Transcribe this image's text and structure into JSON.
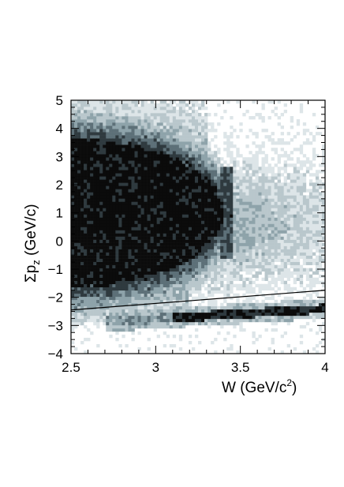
{
  "chart_data": {
    "type": "heatmap",
    "title": "",
    "xlabel": "W (GeV/c²)",
    "ylabel": "Σp_z (GeV/c)",
    "xlabel_parts": {
      "main": "W (GeV/c",
      "sup": "2",
      "end": ")"
    },
    "ylabel_parts": {
      "sigma": "Σp",
      "sub": "z",
      "rest": " (GeV/c)"
    },
    "xlim": [
      2.5,
      4
    ],
    "ylim": [
      -4,
      5
    ],
    "x_ticks": [
      2.5,
      3,
      3.5,
      4
    ],
    "x_tick_labels": [
      "2.5",
      "3",
      "3.5",
      "4"
    ],
    "y_ticks": [
      -4,
      -3,
      -2,
      -1,
      0,
      1,
      2,
      3,
      4,
      5
    ],
    "y_tick_labels": [
      "−4",
      "−3",
      "−2",
      "−1",
      "0",
      "1",
      "2",
      "3",
      "4",
      "5"
    ],
    "grid": false,
    "colormap": [
      "#ffffff",
      "#dde5e8",
      "#b9c7cc",
      "#8ea3aa",
      "#5d7078",
      "#2f3a3f",
      "#0b0b0b"
    ],
    "cut_line": {
      "x": [
        2.5,
        4
      ],
      "y": [
        -2.45,
        -1.75
      ]
    },
    "structures": [
      {
        "name": "main band",
        "center_y": 1.0,
        "extends_to_x": 3.35
      },
      {
        "name": "lower band",
        "y_range": [
          -2.9,
          -2.3
        ],
        "x_range": [
          2.75,
          4
        ]
      }
    ]
  }
}
